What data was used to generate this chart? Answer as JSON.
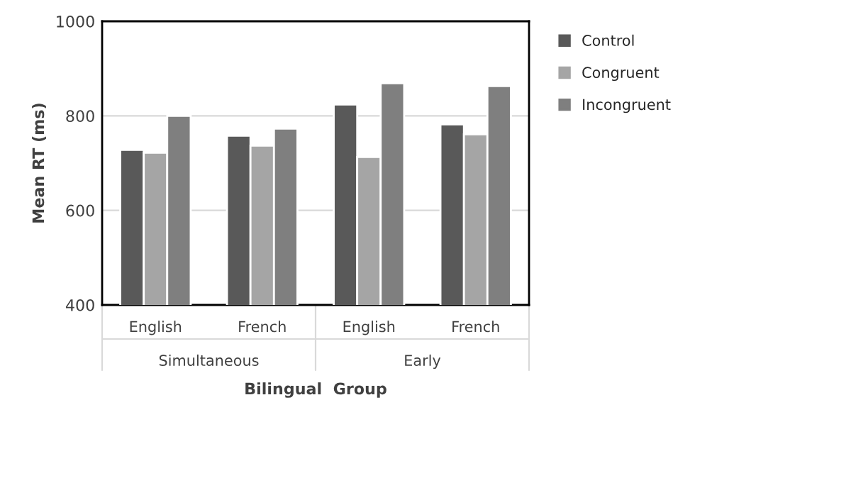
{
  "chart_data": {
    "type": "bar",
    "xlabel": "Bilingual  Group",
    "ylabel": "Mean RT (ms)",
    "categories": [
      "English",
      "French",
      "English",
      "French"
    ],
    "series": [
      {
        "name": "Control",
        "color": "#595959",
        "values": [
          728,
          758,
          824,
          782
        ]
      },
      {
        "name": "Congruent",
        "color": "#a5a5a5",
        "values": [
          722,
          737,
          713,
          761
        ]
      },
      {
        "name": "Incongruent",
        "color": "#7f7f7f",
        "values": [
          800,
          773,
          869,
          863
        ]
      }
    ],
    "annotations": [
      "Simultaneous",
      "Early"
    ],
    "ylim": [
      400,
      1000
    ],
    "yticks": [
      400,
      600,
      800,
      1000
    ],
    "grid": "y",
    "legend": "top right"
  }
}
